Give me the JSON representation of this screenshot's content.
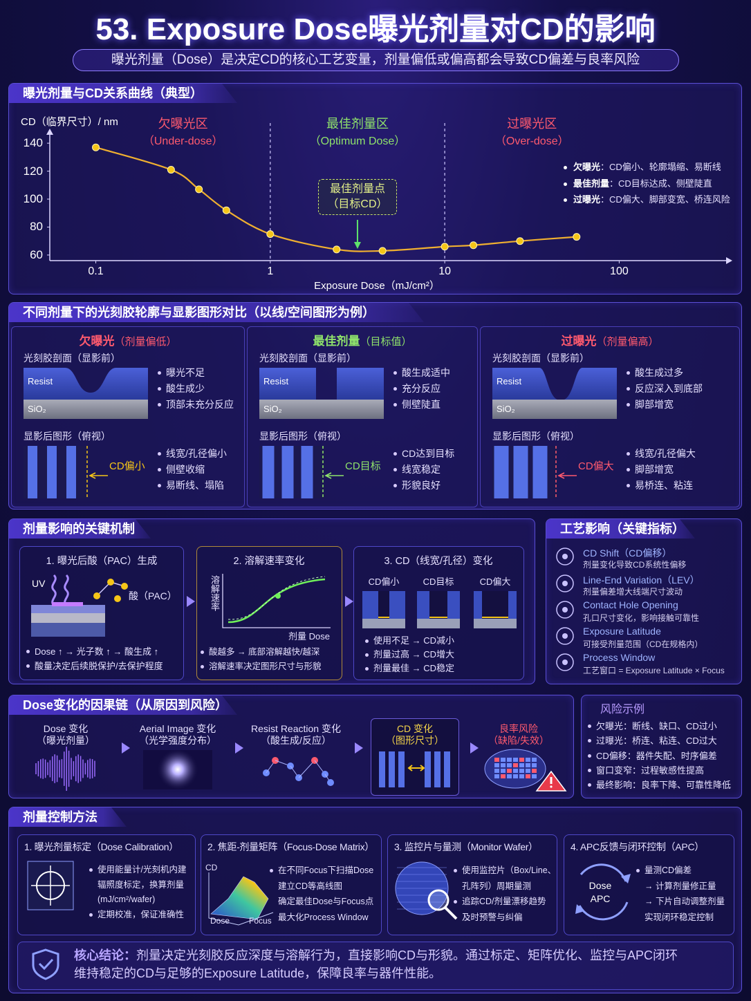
{
  "header": {
    "title": "53. Exposure Dose曝光剂量对CD的影响",
    "subtitle": "曝光剂量（Dose）是决定CD的核心工艺变量，剂量偏低或偏高都会导致CD偏差与良率风险"
  },
  "chart_data": {
    "type": "line",
    "title": "曝光剂量与CD关系曲线（典型）",
    "y_label": "CD（临界尺寸）/ nm",
    "x_label": "Exposure Dose（mJ/cm²）",
    "x_scale": "log",
    "xlim": [
      0.056,
      410
    ],
    "ylim": [
      56,
      146
    ],
    "xticks": [
      0.1,
      1,
      10,
      100
    ],
    "yticks": [
      60,
      80,
      100,
      120,
      140
    ],
    "x": [
      0.1,
      0.27,
      0.39,
      0.56,
      1,
      2.4,
      4.4,
      10,
      14.6,
      27,
      57
    ],
    "values": [
      137,
      121,
      107,
      92,
      75,
      64,
      63,
      66,
      67,
      70,
      73
    ],
    "color": "#f5c518",
    "regions": [
      {
        "label": "欠曝光区",
        "sublabel": "（Under-dose）",
        "color": "#ff5a6e"
      },
      {
        "label": "最佳剂量区",
        "sublabel": "（Optimum Dose）",
        "color": "#8fe36b"
      },
      {
        "label": "过曝光区",
        "sublabel": "（Over-dose）",
        "color": "#ff5a6e"
      }
    ],
    "annotation": [
      "最佳剂量点",
      "（目标CD）"
    ],
    "notes": [
      {
        "term": "欠曝光",
        "text": "：CD偏小、轮廓塌缩、易断线"
      },
      {
        "term": "最佳剂量",
        "text": "：CD目标达成、侧壁陡直"
      },
      {
        "term": "过曝光",
        "text": "：CD偏大、脚部变宽、桥连风险"
      }
    ]
  },
  "profiles": {
    "title": "不同剂量下的光刻胶轮廓与显影图形对比（以线/空间图形为例）",
    "panels": [
      {
        "heading": "欠曝光",
        "sub": "（剂量偏低）",
        "color": "#ff5a6e",
        "profile_label": "光刻胶剖面（显影前）",
        "resist": "Resist",
        "sio2": "SiO₂",
        "bullets1": [
          "曝光不足",
          "酸生成少",
          "顶部未充分反应"
        ],
        "top_label": "显影后图形（俯视）",
        "cd_label": "CD偏小",
        "cd_color": "#f5c518",
        "bullets2": [
          "线宽/孔径偏小",
          "侧壁收缩",
          "易断线、塌陷"
        ]
      },
      {
        "heading": "最佳剂量",
        "sub": "（目标值）",
        "color": "#8fe36b",
        "profile_label": "光刻胶剖面（显影前）",
        "resist": "Resist",
        "sio2": "SiO₂",
        "bullets1": [
          "酸生成适中",
          "充分反应",
          "侧壁陡直"
        ],
        "top_label": "显影后图形（俯视）",
        "cd_label": "CD目标",
        "cd_color": "#8fe36b",
        "bullets2": [
          "CD达到目标",
          "线宽稳定",
          "形貌良好"
        ]
      },
      {
        "heading": "过曝光",
        "sub": "（剂量偏高）",
        "color": "#ff5a6e",
        "profile_label": "光刻胶剖面（显影前）",
        "resist": "Resist",
        "sio2": "SiO₂",
        "bullets1": [
          "酸生成过多",
          "反应深入到底部",
          "脚部增宽"
        ],
        "top_label": "显影后图形（俯视）",
        "cd_label": "CD偏大",
        "cd_color": "#ff5a6e",
        "bullets2": [
          "线宽/孔径偏大",
          "脚部增宽",
          "易桥连、粘连"
        ]
      }
    ]
  },
  "mechanism": {
    "title": "剂量影响的关键机制",
    "card1": {
      "title": "1. 曝光后酸（PAC）生成",
      "uv": "UV",
      "acid": "酸（PAC）",
      "bullets": [
        "Dose ↑ → 光子数 ↑ → 酸生成 ↑",
        "酸量决定后续脱保护/去保护程度"
      ]
    },
    "card2": {
      "title": "2. 溶解速率变化",
      "y_label": "溶解速率",
      "x_label": "剂量 Dose",
      "bullets": [
        "酸越多 → 底部溶解越快/越深",
        "溶解速率决定图形尺寸与形貌"
      ]
    },
    "card3": {
      "title": "3. CD（线宽/孔径）变化",
      "labels": [
        "CD偏小",
        "CD目标",
        "CD偏大"
      ],
      "bullets": [
        "使用不足 → CD减小",
        "剂量过高 → CD增大",
        "剂量最佳 → CD稳定"
      ]
    }
  },
  "impact": {
    "title": "工艺影响（关键指标）",
    "items": [
      {
        "name": "CD Shift（CD偏移）",
        "desc": "剂量变化导致CD系统性偏移"
      },
      {
        "name": "Line-End Variation（LEV）",
        "desc": "剂量偏差增大线端尺寸波动"
      },
      {
        "name": "Contact Hole Opening",
        "desc": "孔口尺寸变化，影响接触可靠性"
      },
      {
        "name": "Exposure Latitude",
        "desc": "可接受剂量范围（CD在规格内）"
      },
      {
        "name": "Process Window",
        "desc": "工艺窗口 = Exposure Latitude × Focus"
      }
    ]
  },
  "chain": {
    "title": "Dose变化的因果链（从原因到风险）",
    "steps": [
      [
        "Dose 变化",
        "（曝光剂量）"
      ],
      [
        "Aerial Image 变化",
        "（光学强度分布）"
      ],
      [
        "Resist Reaction 变化",
        "（酸生成/反应）"
      ],
      [
        "CD 变化",
        "（图形尺寸）"
      ],
      [
        "良率风险",
        "（缺陷/失效）"
      ]
    ]
  },
  "risk": {
    "title": "风险示例",
    "items": [
      "欠曝光：断线、缺口、CD过小",
      "过曝光：桥连、粘连、CD过大",
      "CD偏移：器件失配、时序偏差",
      "窗口变窄：过程敏感性提高",
      "最终影响：良率下降、可靠性降低"
    ]
  },
  "control": {
    "title": "剂量控制方法",
    "cards": [
      {
        "title": "1. 曝光剂量标定（Dose Calibration）",
        "bullets": [
          [
            "使用能量计/光刻机内建",
            "辐照度标定，换算剂量",
            "(mJ/cm²/wafer)"
          ],
          [
            "定期校准，保证准确性"
          ]
        ]
      },
      {
        "title": "2. 焦距-剂量矩阵（Focus-Dose Matrix）",
        "axes": [
          "CD",
          "Dose",
          "Focus"
        ],
        "bullets": [
          [
            "在不同Focus下扫描Dose",
            "建立CD等高线图",
            "确定最佳Dose与Focus点",
            "最大化Process Window"
          ]
        ]
      },
      {
        "title": "3. 监控片与量测（Monitor Wafer）",
        "bullets": [
          [
            "使用监控片（Box/Line、",
            "孔阵列）周期量测"
          ],
          [
            "追踪CD/剂量漂移趋势",
            "及时预警与纠偏"
          ]
        ]
      },
      {
        "title": "4. APC反馈与闭环控制（APC）",
        "center": [
          "Dose",
          "APC"
        ],
        "bullets": [
          [
            "量测CD偏差",
            "→ 计算剂量修正量",
            "→ 下片自动调整剂量",
            "实现闭环稳定控制"
          ]
        ]
      }
    ]
  },
  "conclusion": {
    "label": "核心结论：",
    "lines": [
      "剂量决定光刻胶反应深度与溶解行为，直接影响CD与形貌。通过标定、矩阵优化、监控与APC闭环",
      "维持稳定的CD与足够的Exposure Latitude，保障良率与器件性能。"
    ]
  }
}
